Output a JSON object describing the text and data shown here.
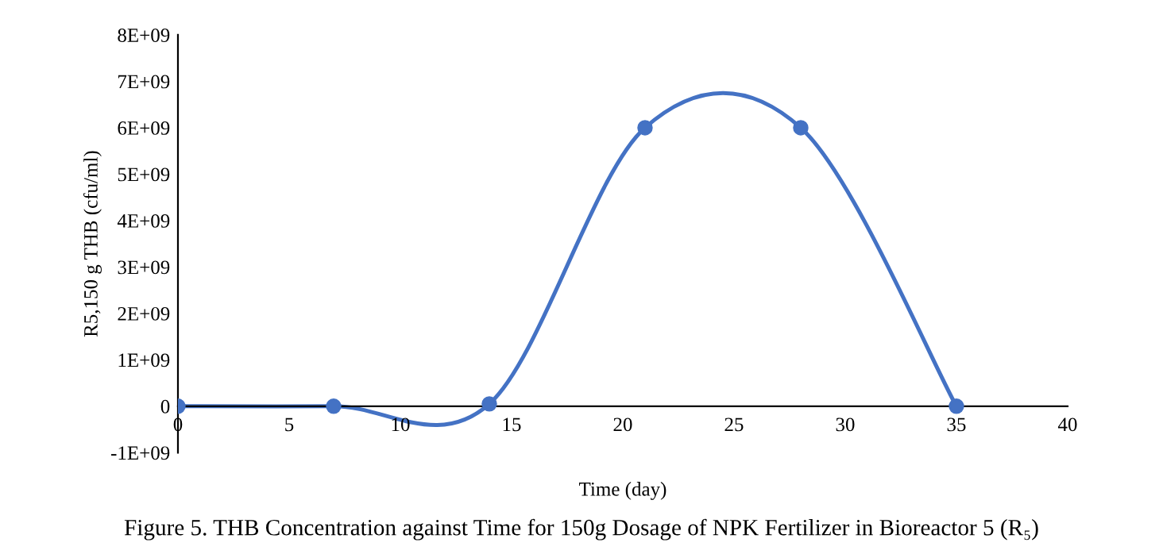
{
  "chart_data": {
    "type": "line",
    "title": "Figure 5. THB Concentration against Time for 150g Dosage of NPK Fertilizer in Bioreactor 5 (R₅)",
    "xlabel": "Time (day)",
    "ylabel": "R5,150 g THB (cfu/ml)",
    "x": [
      0,
      7,
      14,
      21,
      28,
      35
    ],
    "series": [
      {
        "color": "#4472c4",
        "values": [
          0,
          0,
          50000000,
          6000000000,
          6000000000,
          0
        ]
      }
    ],
    "marker": "circle",
    "line_style": "solid",
    "grid": false,
    "legend": false,
    "xlim": [
      0,
      40
    ],
    "xticks": [
      0,
      5,
      10,
      15,
      20,
      25,
      30,
      35,
      40
    ],
    "ylim": [
      -1000000000,
      8000000000
    ],
    "yticks": [
      {
        "value": -1000000000,
        "label": "-1E+09"
      },
      0,
      {
        "value": 1000000000,
        "label": "1E+09"
      },
      {
        "value": 2000000000,
        "label": "2E+09"
      },
      {
        "value": 3000000000,
        "label": "3E+09"
      },
      {
        "value": 4000000000,
        "label": "4E+09"
      },
      {
        "value": 5000000000,
        "label": "5E+09"
      },
      {
        "value": 6000000000,
        "label": "6E+09"
      },
      {
        "value": 7000000000,
        "label": "7E+09"
      },
      {
        "value": 8000000000,
        "label": "8E+09"
      }
    ]
  }
}
